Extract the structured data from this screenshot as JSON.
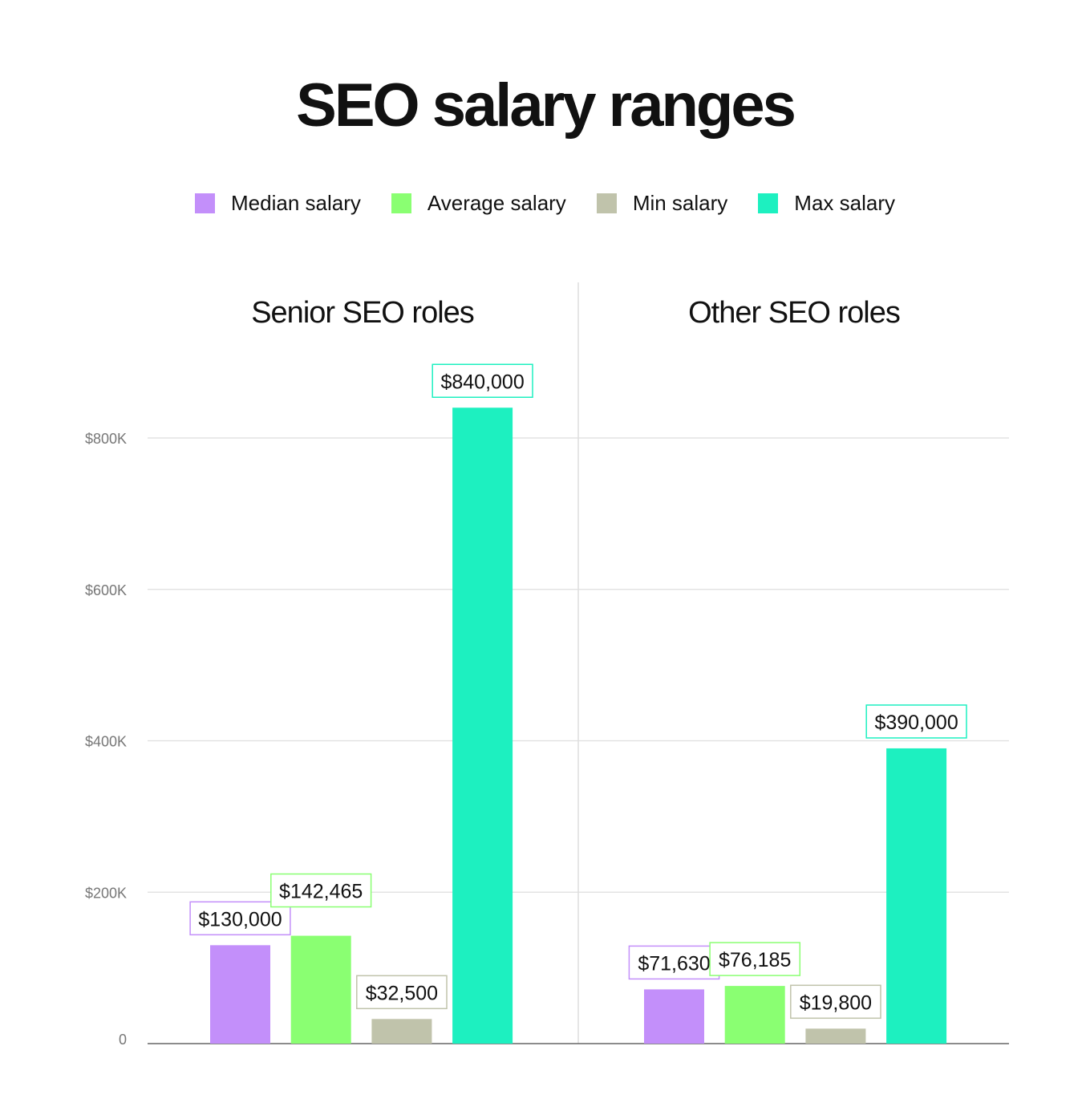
{
  "chart_data": {
    "type": "bar",
    "title": "SEO salary ranges",
    "legend_placement": "top",
    "grid": true,
    "ylim": [
      0,
      900000
    ],
    "yticks": [
      {
        "value": 0,
        "label": "0"
      },
      {
        "value": 200000,
        "label": "$200K"
      },
      {
        "value": 400000,
        "label": "$400K"
      },
      {
        "value": 600000,
        "label": "$600K"
      },
      {
        "value": 800000,
        "label": "$800K"
      }
    ],
    "categories": [
      "Senior SEO roles",
      "Other SEO roles"
    ],
    "series": [
      {
        "name": "Median salary",
        "color": "#c38ffa",
        "values": [
          130000,
          71630
        ],
        "labels": [
          "$130,000",
          "$71,630"
        ]
      },
      {
        "name": "Average salary",
        "color": "#8aff72",
        "values": [
          142465,
          76185
        ],
        "labels": [
          "$142,465",
          "$76,185"
        ]
      },
      {
        "name": "Min salary",
        "color": "#c0c3ab",
        "values": [
          32500,
          19800
        ],
        "labels": [
          "$32,500",
          "$19,800"
        ]
      },
      {
        "name": "Max salary",
        "color": "#1df0c0",
        "values": [
          840000,
          390000
        ],
        "labels": [
          "$840,000",
          "$390,000"
        ]
      }
    ]
  }
}
